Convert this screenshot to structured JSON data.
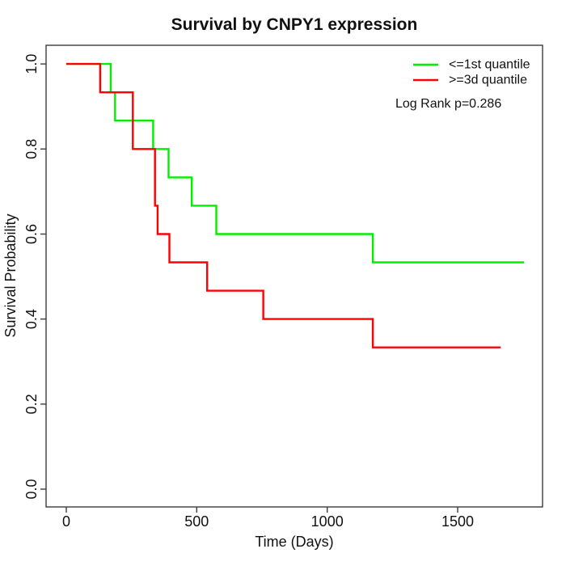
{
  "chart_data": {
    "type": "line",
    "subtype": "kaplan-meier-step",
    "title": "Survival by CNPY1 expression",
    "xlabel": "Time (Days)",
    "ylabel": "Survival Probability",
    "xlim": [
      0,
      1750
    ],
    "ylim": [
      0.0,
      1.0
    ],
    "x_ticks": [
      "0",
      "500",
      "1000",
      "1500"
    ],
    "y_ticks": [
      "0.0",
      "0.2",
      "0.4",
      "0.6",
      "0.8",
      "1.0"
    ],
    "grid": false,
    "legend_position": "top-right",
    "annotation": "Log Rank p=0.286",
    "series": [
      {
        "name": "<=1st quantile",
        "color": "#00ee00",
        "steps": [
          [
            0,
            1.0
          ],
          [
            170,
            0.9333
          ],
          [
            187,
            0.8667
          ],
          [
            333,
            0.8
          ],
          [
            392,
            0.7333
          ],
          [
            481,
            0.6667
          ],
          [
            575,
            0.6
          ],
          [
            1175,
            0.5333
          ]
        ],
        "end_time": 1755
      },
      {
        "name": ">=3d quantile",
        "color": "#ff0000",
        "steps": [
          [
            0,
            1.0
          ],
          [
            130,
            0.9333
          ],
          [
            255,
            0.8
          ],
          [
            340,
            0.6667
          ],
          [
            350,
            0.6
          ],
          [
            395,
            0.5333
          ],
          [
            540,
            0.4667
          ],
          [
            755,
            0.4
          ],
          [
            1175,
            0.3333
          ]
        ],
        "end_time": 1665
      }
    ]
  }
}
